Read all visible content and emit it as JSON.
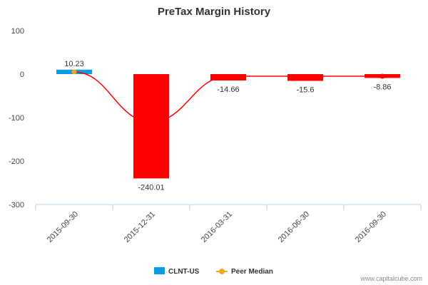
{
  "chart_data": {
    "type": "bar",
    "title": "PreTax Margin History",
    "categories": [
      "2015-09-30",
      "2015-12-31",
      "2016-03-31",
      "2016-06-30",
      "2016-09-30"
    ],
    "series": [
      {
        "name": "CLNT-US",
        "type": "bar",
        "values": [
          10.23,
          -240.01,
          -14.66,
          -15.6,
          -8.86
        ],
        "labels": [
          "10.23",
          "-240.01",
          "-14.66",
          "-15.6",
          "-8.86"
        ],
        "color_positive": "#0b9cdf",
        "color_negative": "#ff0000"
      },
      {
        "name": "Peer Median",
        "type": "line",
        "values": [
          5,
          -110,
          -5,
          -5,
          -5
        ],
        "color": "#ff0000",
        "marker_color": "#f5a623"
      }
    ],
    "ylim": [
      -300,
      100
    ],
    "yticks": [
      100,
      0,
      -100,
      -200,
      -300
    ],
    "xlabel": "",
    "ylabel": "",
    "grid": false,
    "legend": "bottom-center"
  },
  "legend": {
    "items": [
      "CLNT-US",
      "Peer Median"
    ]
  },
  "source": "www.capitalcube.com"
}
